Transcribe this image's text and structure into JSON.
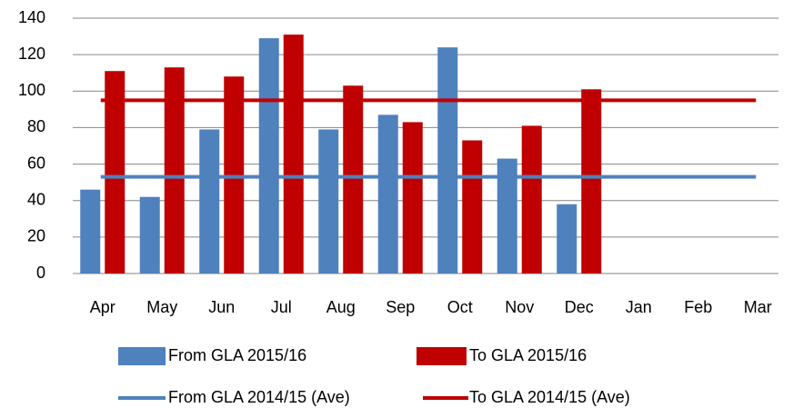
{
  "chart_data": {
    "type": "bar",
    "categories": [
      "Apr",
      "May",
      "Jun",
      "Jul",
      "Aug",
      "Sep",
      "Oct",
      "Nov",
      "Dec",
      "Jan",
      "Feb",
      "Mar"
    ],
    "series": [
      {
        "name": "From GLA 2015/16",
        "type": "bar",
        "color": "#4f81bd",
        "values": [
          46,
          42,
          79,
          129,
          79,
          87,
          124,
          63,
          38,
          null,
          null,
          null
        ]
      },
      {
        "name": "To GLA 2015/16",
        "type": "bar",
        "color": "#c00000",
        "values": [
          111,
          113,
          108,
          131,
          103,
          83,
          73,
          81,
          101,
          null,
          null,
          null
        ]
      },
      {
        "name": "From GLA 2014/15 (Ave)",
        "type": "line",
        "color": "#4f81bd",
        "values": [
          53,
          53,
          53,
          53,
          53,
          53,
          53,
          53,
          53,
          53,
          53,
          53
        ]
      },
      {
        "name": "To GLA 2014/15 (Ave)",
        "type": "line",
        "color": "#c00000",
        "values": [
          95,
          95,
          95,
          95,
          95,
          95,
          95,
          95,
          95,
          95,
          95,
          95
        ]
      }
    ],
    "ylim": [
      0,
      140
    ],
    "yticks": [
      0,
      20,
      40,
      60,
      80,
      100,
      120,
      140
    ],
    "grid": true
  }
}
